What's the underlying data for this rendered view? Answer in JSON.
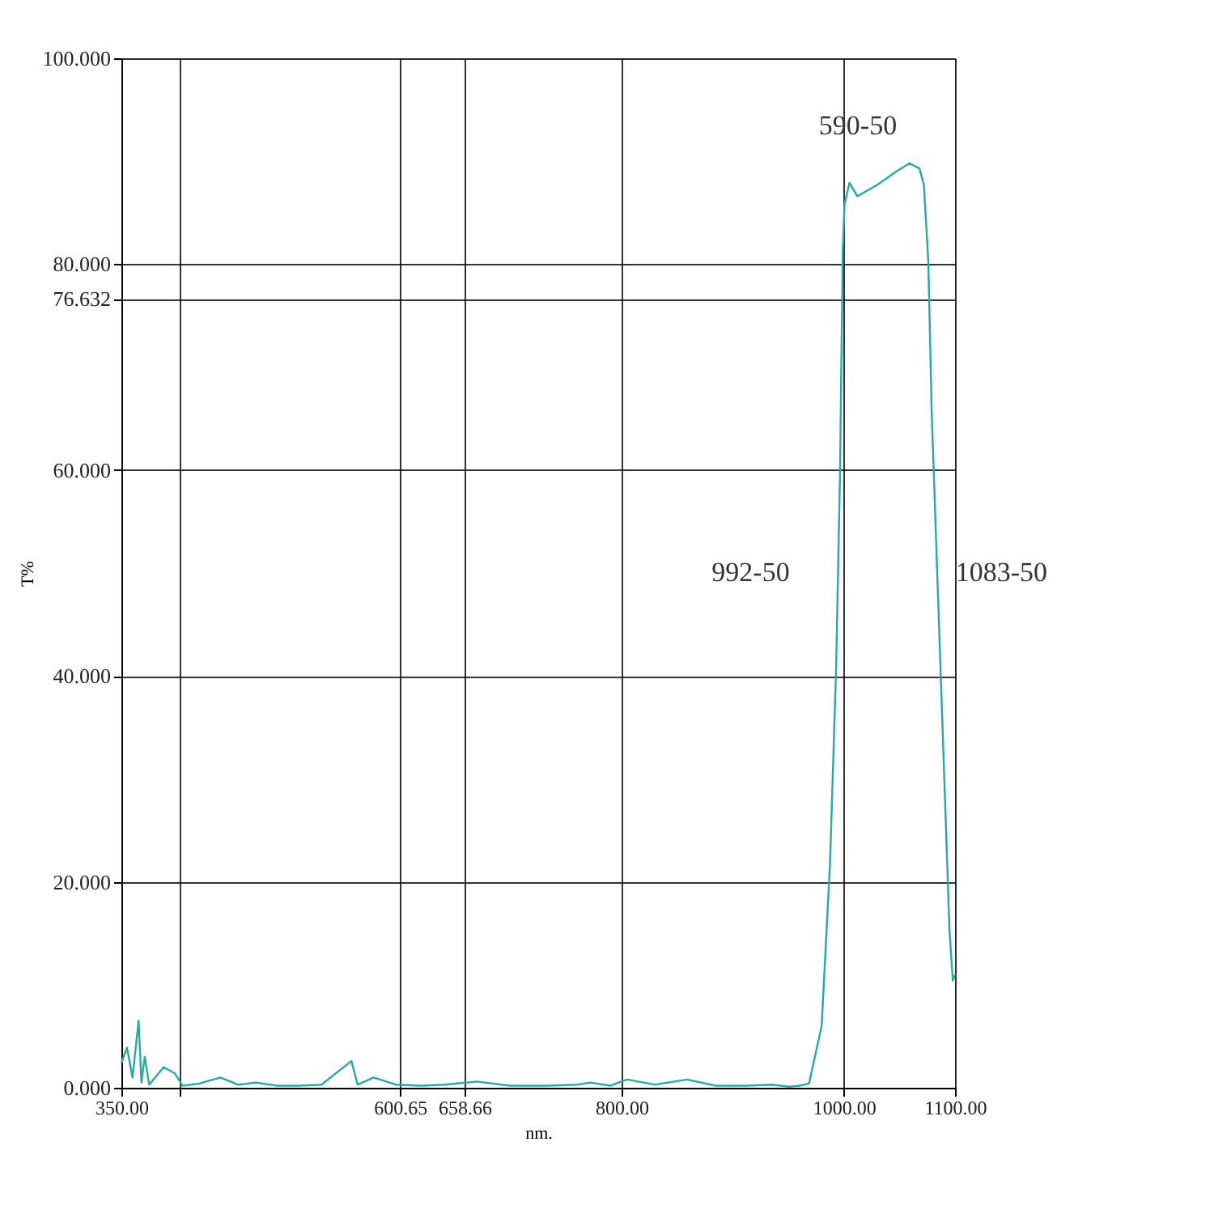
{
  "chart_data": {
    "type": "line",
    "xlabel": "nm.",
    "ylabel": "T%",
    "x": [
      350,
      355,
      360,
      365.5,
      368,
      371,
      375,
      388,
      398,
      405,
      420,
      439,
      455,
      471,
      490,
      510,
      530,
      557,
      562.5,
      577,
      597,
      620,
      640,
      670,
      700,
      733,
      760,
      772,
      790,
      805,
      830,
      859,
      885,
      912,
      935,
      951,
      960,
      968.6,
      980,
      987.5,
      993,
      996.5,
      999,
      1000.6,
      1005,
      1012,
      1030,
      1047,
      1059,
      1068,
      1072,
      1076,
      1079,
      1085,
      1091,
      1095,
      1098,
      1100
    ],
    "series": [
      {
        "color": "#2aa8a8",
        "values": [
          2.4,
          3.9,
          1.0,
          6.5,
          0.5,
          3.0,
          0.3,
          2.0,
          1.4,
          0.2,
          0.4,
          1.0,
          0.3,
          0.5,
          0.2,
          0.2,
          0.3,
          2.6,
          0.3,
          1.0,
          0.3,
          0.2,
          0.3,
          0.6,
          0.2,
          0.2,
          0.3,
          0.5,
          0.2,
          0.8,
          0.3,
          0.8,
          0.2,
          0.2,
          0.3,
          0.1,
          0.2,
          0.4,
          6.0,
          21.7,
          40.6,
          59.4,
          81.4,
          85.8,
          87.9,
          86.6,
          87.7,
          89.0,
          89.8,
          89.3,
          87.7,
          80.2,
          65.7,
          46.9,
          28.0,
          15.4,
          10.4,
          11.0
        ]
      }
    ],
    "xlim": [
      350,
      1100
    ],
    "xticks": [
      {
        "value": 350,
        "label": "350.00"
      },
      {
        "value": 402,
        "label": null
      },
      {
        "value": 600.65,
        "label": "600.65"
      },
      {
        "value": 658.66,
        "label": "658.66"
      },
      {
        "value": 800,
        "label": "800.00"
      },
      {
        "value": 1000,
        "label": "1000.00"
      },
      {
        "value": 1100,
        "label": "1100.00"
      }
    ],
    "ylim": [
      0,
      100
    ],
    "yticks": [
      {
        "value": 0,
        "label": "0.000"
      },
      {
        "value": 20,
        "label": "20.000"
      },
      {
        "value": 40,
        "label": "40.000"
      },
      {
        "value": 60,
        "label": "60.000"
      },
      {
        "value": 76.632,
        "label": "76.632"
      },
      {
        "value": 80,
        "label": "80.000"
      },
      {
        "value": 100,
        "label": "100.000"
      }
    ],
    "grid": true,
    "line_style": "solid",
    "annotations": [
      "590-50",
      {
        "text": "992-50",
        "x": 992,
        "y": 50
      },
      {
        "text": "1083-50",
        "x": 1083,
        "y": 50
      }
    ]
  }
}
